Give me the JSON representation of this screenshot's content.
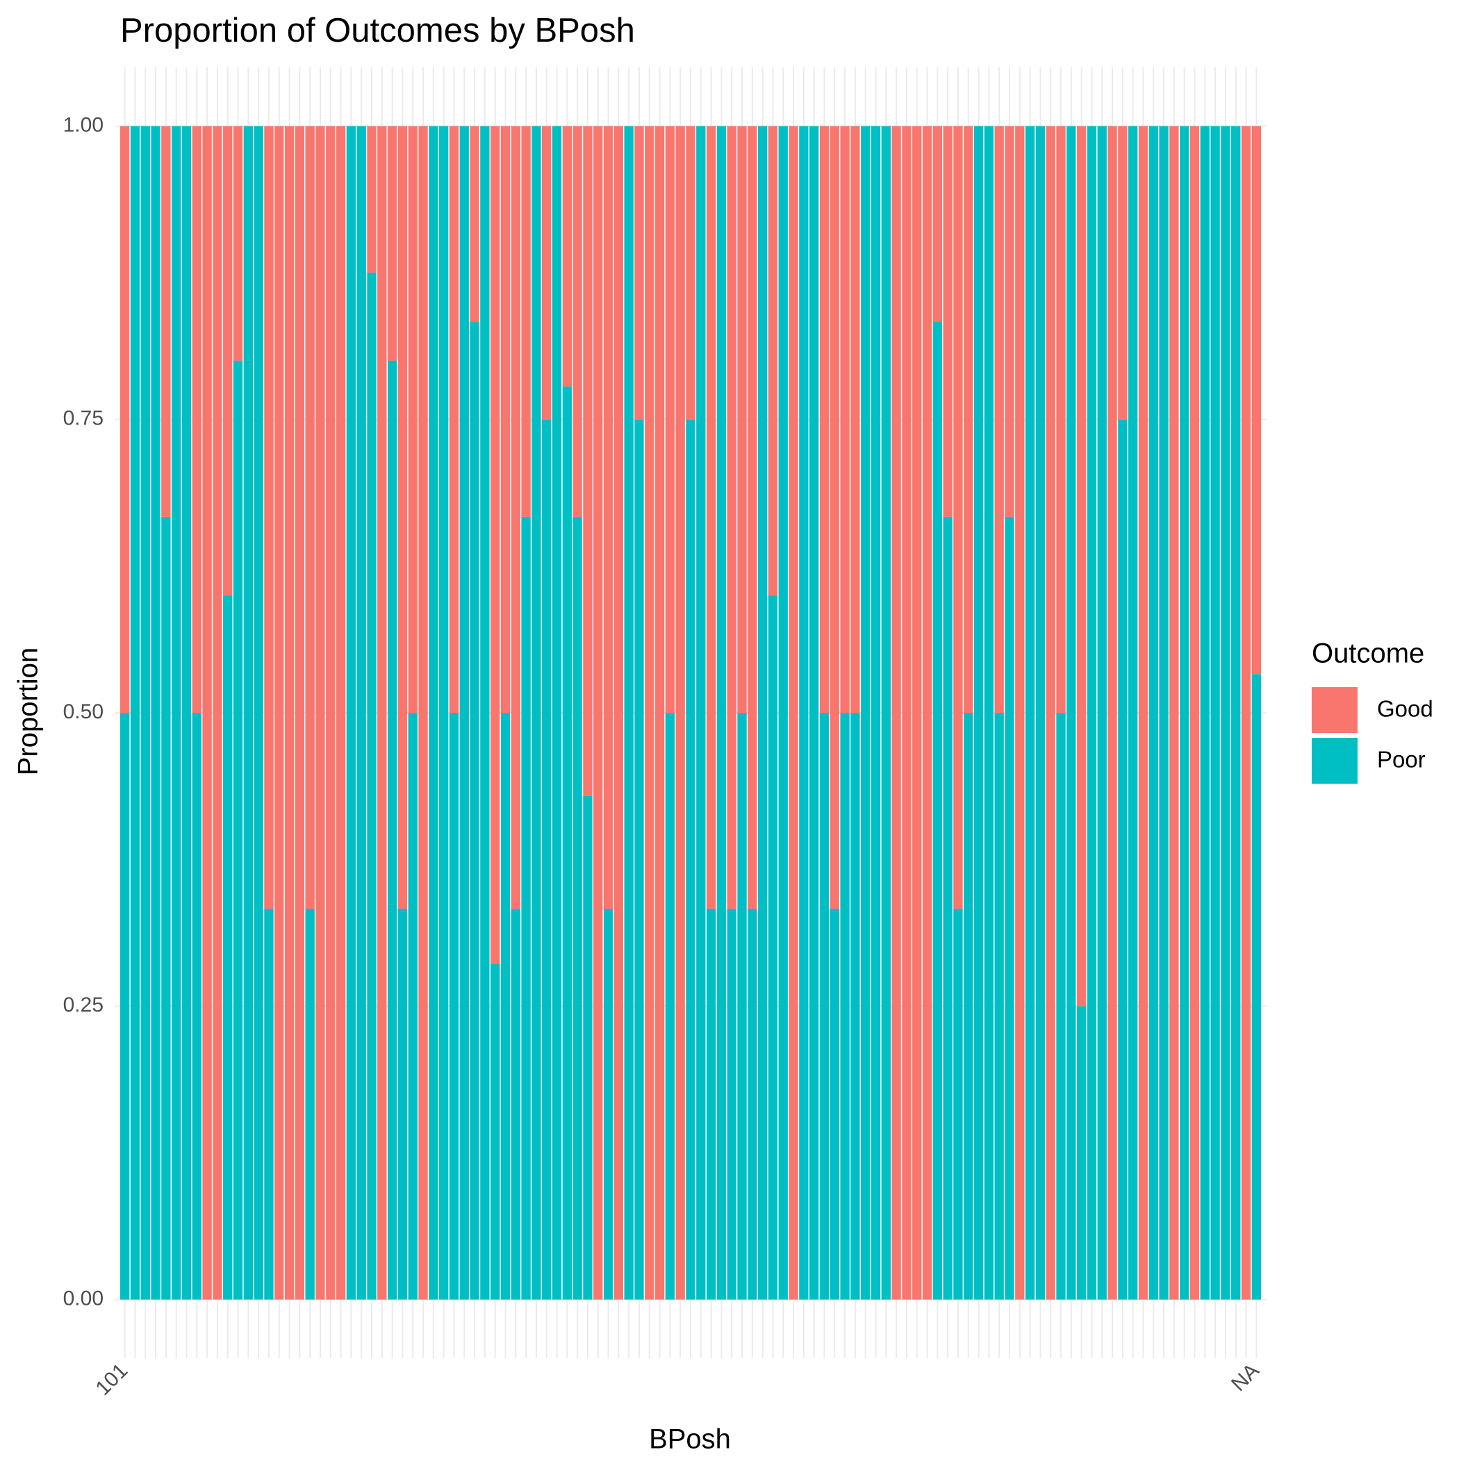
{
  "chart_data": {
    "type": "stacked-bar",
    "title": "Proportion of Outcomes by BPosh",
    "x_label": "BPosh",
    "y_label": "Proportion",
    "legend_title": "Outcome",
    "categories": [
      "101",
      null,
      null,
      null,
      null,
      null,
      null,
      null,
      null,
      null,
      null,
      null,
      null,
      null,
      null,
      null,
      null,
      null,
      null,
      null,
      null,
      null,
      null,
      null,
      null,
      null,
      null,
      null,
      null,
      null,
      null,
      null,
      null,
      null,
      null,
      null,
      null,
      null,
      null,
      null,
      null,
      null,
      null,
      null,
      null,
      null,
      null,
      null,
      null,
      null,
      null,
      null,
      null,
      null,
      null,
      null,
      null,
      null,
      null,
      null,
      null,
      null,
      null,
      null,
      null,
      null,
      null,
      null,
      null,
      null,
      null,
      null,
      null,
      null,
      null,
      null,
      null,
      null,
      null,
      null,
      null,
      null,
      null,
      null,
      null,
      null,
      null,
      null,
      null,
      null,
      null,
      null,
      null,
      null,
      null,
      null,
      null,
      null,
      null,
      null,
      null,
      null,
      null,
      null,
      null,
      null,
      null,
      null,
      null,
      null,
      "NA"
    ],
    "series": [
      {
        "name": "Poor",
        "color": "#00bfc4",
        "values": [
          0.5,
          1,
          1,
          1,
          0.667,
          1,
          1,
          0.5,
          0,
          0,
          0.6,
          0.8,
          1,
          1,
          0.333,
          0,
          0,
          0,
          0.333,
          0,
          0,
          0,
          1,
          1,
          0.875,
          0,
          0.8,
          0.333,
          0.5,
          0,
          1,
          1,
          0.5,
          1,
          0.833,
          1,
          0.286,
          0.5,
          0.333,
          0.667,
          1,
          0.75,
          1,
          0.778,
          0.667,
          0.429,
          0,
          0.333,
          0,
          1,
          0.75,
          0,
          0,
          0.5,
          0,
          0.75,
          1,
          0.333,
          1,
          0.333,
          0.5,
          0.333,
          1,
          0.6,
          1,
          0,
          1,
          1,
          0.5,
          0.333,
          0.5,
          0.5,
          1,
          1,
          1,
          0,
          0,
          0,
          0,
          0.833,
          0.667,
          0.333,
          0.5,
          1,
          1,
          0.5,
          0.667,
          0,
          1,
          1,
          0,
          0.5,
          1,
          0.25,
          1,
          1,
          0,
          0.75,
          1,
          0,
          1,
          1,
          0,
          1,
          0,
          1,
          1,
          1,
          1,
          0,
          0.533
        ]
      },
      {
        "name": "Good",
        "color": "#f8766d",
        "values": [
          0.5,
          0,
          0,
          0,
          0.333,
          0,
          0,
          0.5,
          1,
          1,
          0.4,
          0.2,
          0,
          0,
          0.667,
          1,
          1,
          1,
          0.667,
          1,
          1,
          1,
          0,
          0,
          0.125,
          1,
          0.2,
          0.667,
          0.5,
          1,
          0,
          0,
          0.5,
          0,
          0.167,
          0,
          0.714,
          0.5,
          0.667,
          0.333,
          0,
          0.25,
          0,
          0.222,
          0.333,
          0.571,
          1,
          0.667,
          1,
          0,
          0.25,
          1,
          1,
          0.5,
          1,
          0.25,
          0,
          0.667,
          0,
          0.667,
          0.5,
          0.667,
          0,
          0.4,
          0,
          1,
          0,
          0,
          0.5,
          0.667,
          0.5,
          0.5,
          0,
          0,
          0,
          1,
          1,
          1,
          1,
          0.167,
          0.333,
          0.667,
          0.5,
          0,
          0,
          0.5,
          0.333,
          1,
          0,
          0,
          1,
          0.5,
          0,
          0.75,
          0,
          0,
          1,
          0.25,
          0,
          1,
          0,
          0,
          1,
          0,
          1,
          0,
          0,
          0,
          0,
          1,
          0.467
        ]
      }
    ],
    "ylim": [
      -0.05,
      1.05
    ],
    "yticks": [
      {
        "value": 0,
        "label": "0.00"
      },
      {
        "value": 0.25,
        "label": "0.25"
      },
      {
        "value": 0.5,
        "label": "0.50"
      },
      {
        "value": 0.75,
        "label": "0.75"
      },
      {
        "value": 1,
        "label": "1.00"
      }
    ],
    "grid": true
  }
}
